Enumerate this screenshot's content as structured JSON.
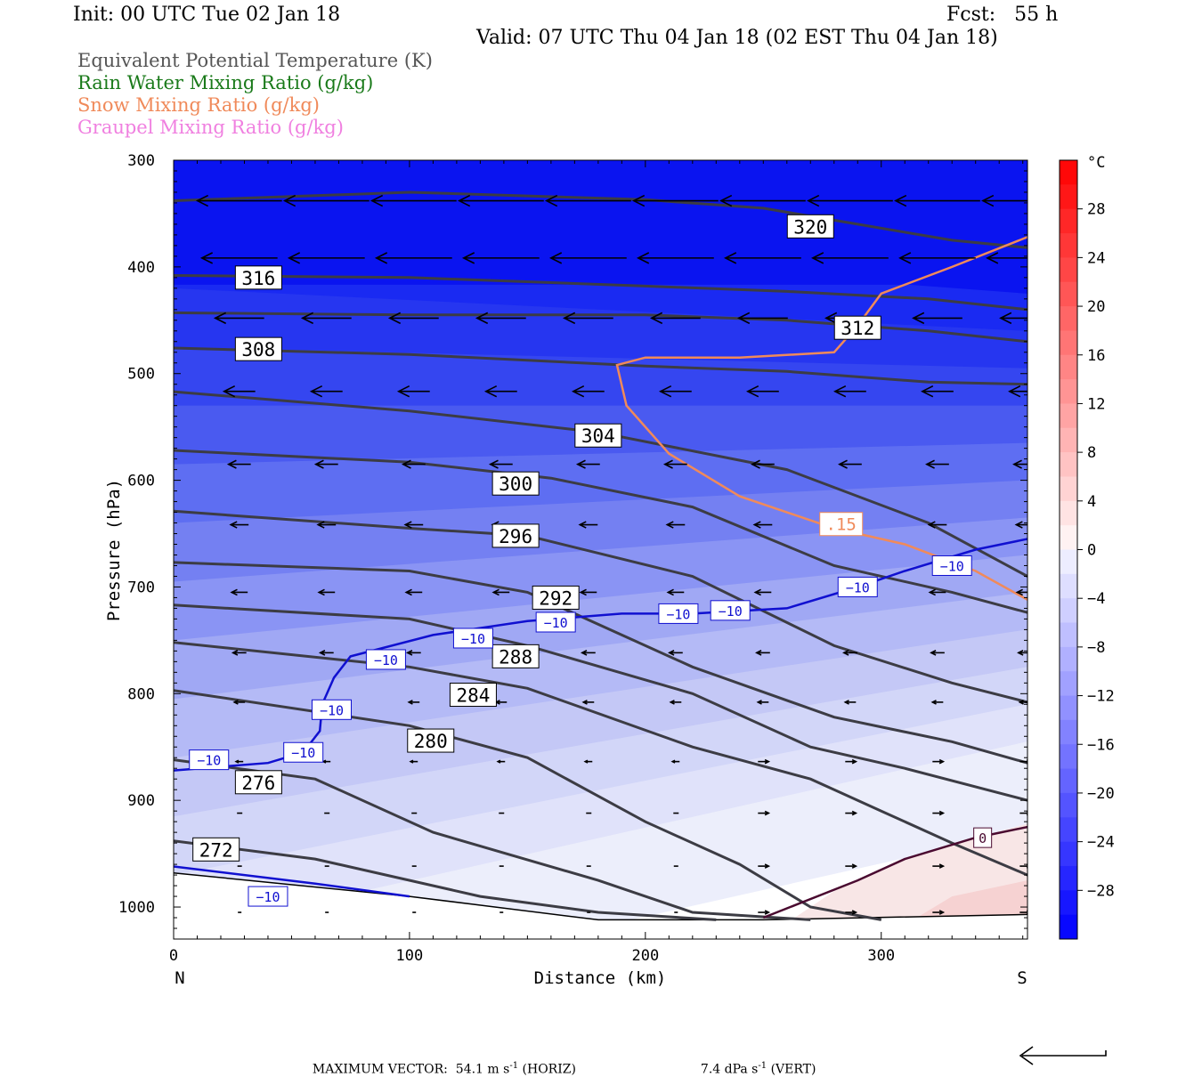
{
  "header": {
    "init": "Init: 00 UTC Tue 02 Jan 18",
    "fcst": "Fcst:   55 h",
    "valid": "Valid: 07 UTC Thu 04 Jan 18 (02 EST Thu 04 Jan 18)"
  },
  "legend": [
    {
      "text": "Equivalent Potential Temperature (K)",
      "color": "#555555"
    },
    {
      "text": "Rain Water Mixing Ratio (g/kg)",
      "color": "#1a7a1a"
    },
    {
      "text": "Snow Mixing Ratio (g/kg)",
      "color": "#f08a5a"
    },
    {
      "text": "Graupel Mixing Ratio (g/kg)",
      "color": "#f080e0"
    }
  ],
  "chart_data": {
    "type": "contour",
    "xlabel": "Distance (km)",
    "ylabel": "Pressure (hPa)",
    "xlim": [
      0,
      362
    ],
    "ylim": [
      1030,
      300
    ],
    "x_ticks": [
      0,
      100,
      200,
      300
    ],
    "y_ticks": [
      300,
      400,
      500,
      600,
      700,
      800,
      900,
      1000
    ],
    "endpoints": {
      "left": "N",
      "right": "S"
    },
    "colorbar": {
      "unit": "°C",
      "labels": [
        "28",
        "24",
        "20",
        "16",
        "12",
        "8",
        "4",
        "0",
        "−4",
        "−8",
        "−12",
        "−16",
        "−20",
        "−24",
        "−28"
      ],
      "values": [
        28,
        24,
        20,
        16,
        12,
        8,
        4,
        0,
        -4,
        -8,
        -12,
        -16,
        -20,
        -24,
        -28
      ],
      "range": [
        -32,
        32
      ]
    },
    "theta_e_contours": [
      {
        "label": "320",
        "points": [
          [
            0,
            338
          ],
          [
            100,
            330
          ],
          [
            200,
            337
          ],
          [
            250,
            345
          ],
          [
            290,
            360
          ],
          [
            330,
            375
          ],
          [
            362,
            382
          ]
        ]
      },
      {
        "label": "316",
        "points": [
          [
            0,
            408
          ],
          [
            100,
            410
          ],
          [
            200,
            418
          ],
          [
            260,
            423
          ],
          [
            320,
            430
          ],
          [
            362,
            440
          ]
        ]
      },
      {
        "label": "312",
        "points": [
          [
            0,
            443
          ],
          [
            100,
            445
          ],
          [
            200,
            445
          ],
          [
            260,
            450
          ],
          [
            320,
            460
          ],
          [
            362,
            470
          ]
        ]
      },
      {
        "label": "308",
        "points": [
          [
            0,
            476
          ],
          [
            100,
            482
          ],
          [
            200,
            493
          ],
          [
            260,
            498
          ],
          [
            320,
            508
          ],
          [
            362,
            510
          ]
        ]
      },
      {
        "label": "304",
        "points": [
          [
            0,
            517
          ],
          [
            100,
            535
          ],
          [
            180,
            555
          ],
          [
            260,
            590
          ],
          [
            320,
            640
          ],
          [
            362,
            690
          ]
        ]
      },
      {
        "label": "300",
        "points": [
          [
            0,
            572
          ],
          [
            100,
            583
          ],
          [
            160,
            598
          ],
          [
            220,
            625
          ],
          [
            280,
            680
          ],
          [
            330,
            705
          ],
          [
            362,
            724
          ]
        ]
      },
      {
        "label": "296",
        "points": [
          [
            0,
            629
          ],
          [
            100,
            645
          ],
          [
            150,
            652
          ],
          [
            220,
            690
          ],
          [
            280,
            755
          ],
          [
            330,
            790
          ],
          [
            362,
            808
          ]
        ]
      },
      {
        "label": "292",
        "points": [
          [
            0,
            677
          ],
          [
            100,
            685
          ],
          [
            150,
            705
          ],
          [
            220,
            775
          ],
          [
            280,
            822
          ],
          [
            330,
            845
          ],
          [
            362,
            865
          ]
        ]
      },
      {
        "label": "288",
        "points": [
          [
            0,
            717
          ],
          [
            100,
            730
          ],
          [
            150,
            755
          ],
          [
            220,
            800
          ],
          [
            270,
            850
          ],
          [
            310,
            870
          ],
          [
            362,
            900
          ]
        ]
      },
      {
        "label": "284",
        "points": [
          [
            0,
            752
          ],
          [
            100,
            775
          ],
          [
            150,
            795
          ],
          [
            220,
            850
          ],
          [
            270,
            880
          ],
          [
            300,
            910
          ],
          [
            330,
            940
          ],
          [
            362,
            970
          ]
        ]
      },
      {
        "label": "280",
        "points": [
          [
            0,
            797
          ],
          [
            100,
            830
          ],
          [
            150,
            860
          ],
          [
            200,
            920
          ],
          [
            240,
            960
          ],
          [
            270,
            1000
          ],
          [
            300,
            1012
          ]
        ]
      },
      {
        "label": "276",
        "points": [
          [
            0,
            862
          ],
          [
            60,
            880
          ],
          [
            110,
            930
          ],
          [
            180,
            975
          ],
          [
            220,
            1005
          ],
          [
            270,
            1012
          ]
        ]
      },
      {
        "label": "272",
        "points": [
          [
            0,
            938
          ],
          [
            60,
            955
          ],
          [
            130,
            990
          ],
          [
            180,
            1005
          ],
          [
            230,
            1012
          ]
        ]
      }
    ],
    "isotherm_labels": [
      "−10",
      "−10",
      "−10",
      "−10",
      "−10",
      "−10",
      "−10",
      "−10",
      "−10",
      "−10",
      "−10",
      "−10",
      "0"
    ],
    "snow_label": ".15",
    "footer": {
      "max_vector": "MAXIMUM VECTOR:  54.1 m s",
      "horiz": "(HORIZ)",
      "vert": "7.4 dPa s",
      "vert_tag": "(VERT)",
      "exp": "-1"
    }
  }
}
